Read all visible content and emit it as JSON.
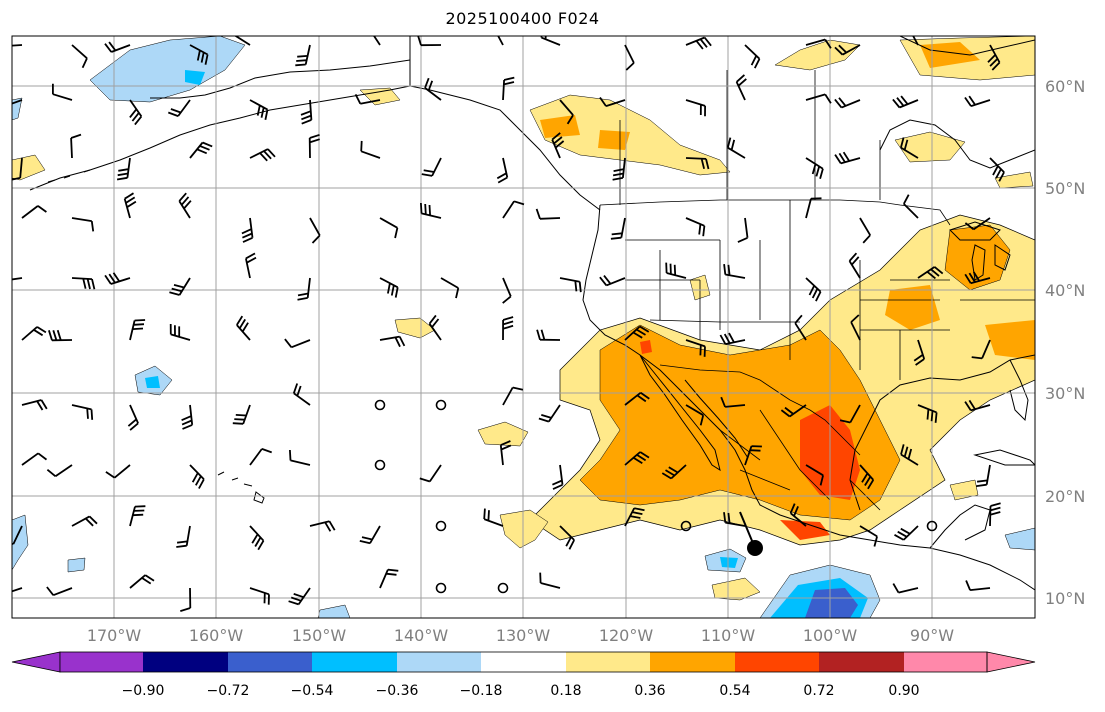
{
  "title": "2025100400 F024",
  "latitude_labels": [
    "60°N",
    "50°N",
    "40°N",
    "30°N",
    "20°N",
    "10°N"
  ],
  "longitude_labels": [
    "170°W",
    "160°W",
    "150°W",
    "140°W",
    "130°W",
    "120°W",
    "110°W",
    "100°W",
    "90°W"
  ],
  "colorbar": {
    "tick_labels": [
      "−0.90",
      "−0.72",
      "−0.54",
      "−0.36",
      "−0.18",
      "0.18",
      "0.36",
      "0.54",
      "0.72",
      "0.90"
    ],
    "colors": {
      "under": "#9932cc",
      "bins": [
        "#000080",
        "#3a5fcd",
        "#00bfff",
        "#add8f7",
        "#ffffff",
        "#ffe98a",
        "#ffa500",
        "#ff4500",
        "#b22222",
        "#ff88aa"
      ],
      "over": "#ff88aa"
    }
  },
  "map_colors": {
    "land_outline": "#000000",
    "grid": "#a0a0a0",
    "positive_weak": "#ffe98a",
    "positive_mid": "#ffa500",
    "positive_strong": "#ff4500",
    "negative_weak": "#add8f7",
    "negative_mid": "#00bfff",
    "negative_strong": "#3a5fcd"
  },
  "markers": {
    "highlight_point": "large black dot near 107°W 15°N"
  }
}
